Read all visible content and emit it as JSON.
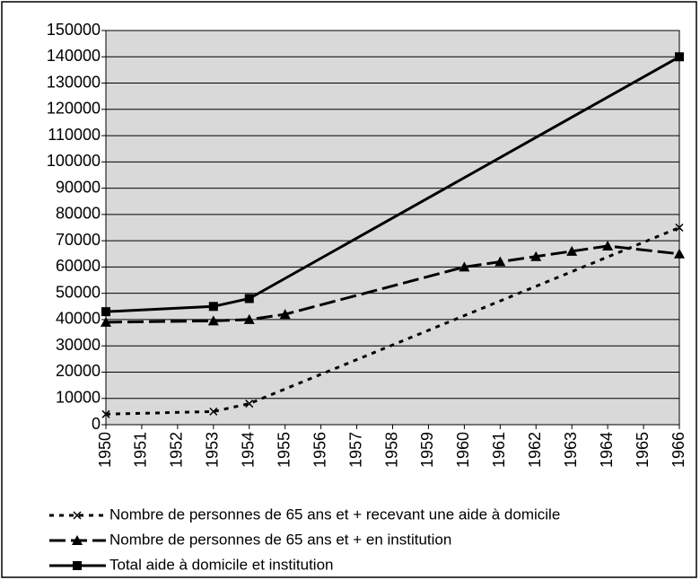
{
  "chart_data": {
    "type": "line",
    "xlim": [
      1950,
      1966
    ],
    "xticks": [
      1950,
      1951,
      1952,
      1953,
      1954,
      1955,
      1956,
      1957,
      1958,
      1959,
      1960,
      1961,
      1962,
      1963,
      1964,
      1965,
      1966
    ],
    "ylim": [
      0,
      150000
    ],
    "yticks": [
      0,
      10000,
      20000,
      30000,
      40000,
      50000,
      60000,
      70000,
      80000,
      90000,
      100000,
      110000,
      120000,
      130000,
      140000,
      150000
    ],
    "grid": true,
    "legend": "bottom",
    "series": [
      {
        "name": "Nombre de personnes de 65 ans et + recevant une aide à domicile",
        "color": "#000000",
        "marker": "x",
        "dash": "short",
        "x": [
          1950,
          1953,
          1954,
          1966
        ],
        "values": [
          4000,
          5000,
          8000,
          75000
        ]
      },
      {
        "name": "Nombre de personnes de 65 ans et + en institution",
        "color": "#000000",
        "marker": "triangle",
        "dash": "long",
        "x": [
          1950,
          1953,
          1954,
          1955,
          1960,
          1961,
          1962,
          1963,
          1964,
          1966
        ],
        "values": [
          39000,
          39500,
          40000,
          42000,
          60000,
          62000,
          64000,
          66000,
          68000,
          65000
        ]
      },
      {
        "name": "Total aide à domicile et institution",
        "color": "#000000",
        "marker": "square",
        "dash": "solid",
        "x": [
          1950,
          1953,
          1954,
          1966
        ],
        "values": [
          43000,
          45000,
          48000,
          140000
        ]
      }
    ]
  }
}
